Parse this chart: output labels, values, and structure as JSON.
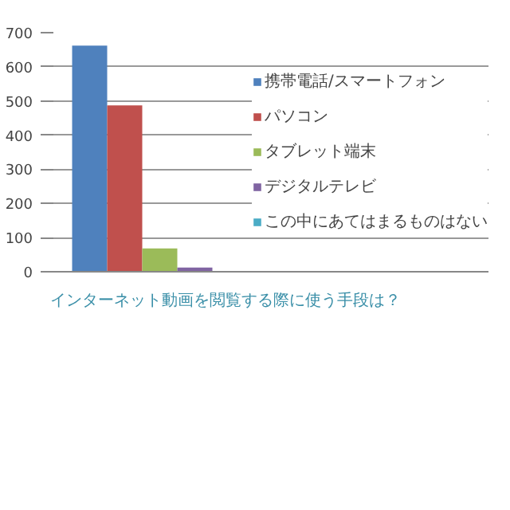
{
  "chart_data": {
    "type": "bar",
    "categories": [
      null
    ],
    "series": [
      {
        "name": "携帯電話/スマートフォン",
        "color": "#4f81bd",
        "values": [
          662
        ]
      },
      {
        "name": "パソコン",
        "color": "#c0504d",
        "values": [
          487
        ]
      },
      {
        "name": "タブレット端末",
        "color": "#9bbb59",
        "values": [
          68
        ]
      },
      {
        "name": "デジタルテレビ",
        "color": "#8064a2",
        "values": [
          12
        ]
      },
      {
        "name": "この中にあてはまるものはない",
        "color": "#4bacc6",
        "values": [
          1
        ]
      }
    ],
    "ylim": [
      0,
      700
    ],
    "yticks": [
      0,
      100,
      200,
      300,
      400,
      500,
      600,
      700
    ],
    "grid": "y",
    "legend": "right",
    "tick_labels": "y",
    "annotations": [
      "インターネット動画を閲覧する際に使う手段は？"
    ]
  }
}
